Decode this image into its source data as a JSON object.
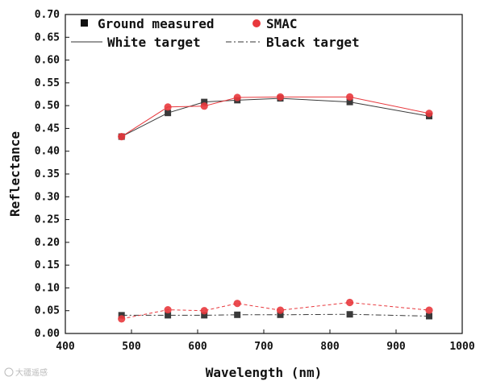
{
  "chart_data": {
    "type": "line",
    "title": "",
    "xlabel": "Wavelength (nm)",
    "ylabel": "Reflectance",
    "xlim": [
      400,
      1000
    ],
    "ylim": [
      0.0,
      0.7
    ],
    "x_ticks": [
      "400",
      "500",
      "600",
      "700",
      "800",
      "900",
      "1000"
    ],
    "y_ticks": [
      "0.00",
      "0.05",
      "0.10",
      "0.15",
      "0.20",
      "0.25",
      "0.30",
      "0.35",
      "0.40",
      "0.45",
      "0.50",
      "0.55",
      "0.60",
      "0.65",
      "0.70"
    ],
    "legend": {
      "ground": "Ground measured",
      "smac": "SMAC",
      "white": "White target",
      "black": "Black target"
    },
    "series": [
      {
        "name": "Ground measured - White target",
        "method": "ground",
        "target": "white",
        "x": [
          485,
          555,
          610,
          660,
          725,
          830,
          950
        ],
        "y": [
          0.432,
          0.484,
          0.508,
          0.512,
          0.516,
          0.508,
          0.477
        ]
      },
      {
        "name": "SMAC - White target",
        "method": "smac",
        "target": "white",
        "x": [
          485,
          555,
          610,
          660,
          725,
          830,
          950
        ],
        "y": [
          0.432,
          0.497,
          0.499,
          0.518,
          0.519,
          0.519,
          0.483
        ]
      },
      {
        "name": "Ground measured - Black target",
        "method": "ground",
        "target": "black",
        "x": [
          485,
          555,
          610,
          660,
          725,
          830,
          950
        ],
        "y": [
          0.04,
          0.04,
          0.04,
          0.041,
          0.041,
          0.042,
          0.038
        ]
      },
      {
        "name": "SMAC - Black target",
        "method": "smac",
        "target": "black",
        "x": [
          485,
          555,
          610,
          660,
          725,
          830,
          950
        ],
        "y": [
          0.032,
          0.052,
          0.05,
          0.066,
          0.051,
          0.068,
          0.051
        ]
      }
    ],
    "colors": {
      "ground": "#3a3a3a",
      "smac": "#e8383d",
      "axis": "#111111"
    }
  },
  "watermark": "大疆遥感"
}
